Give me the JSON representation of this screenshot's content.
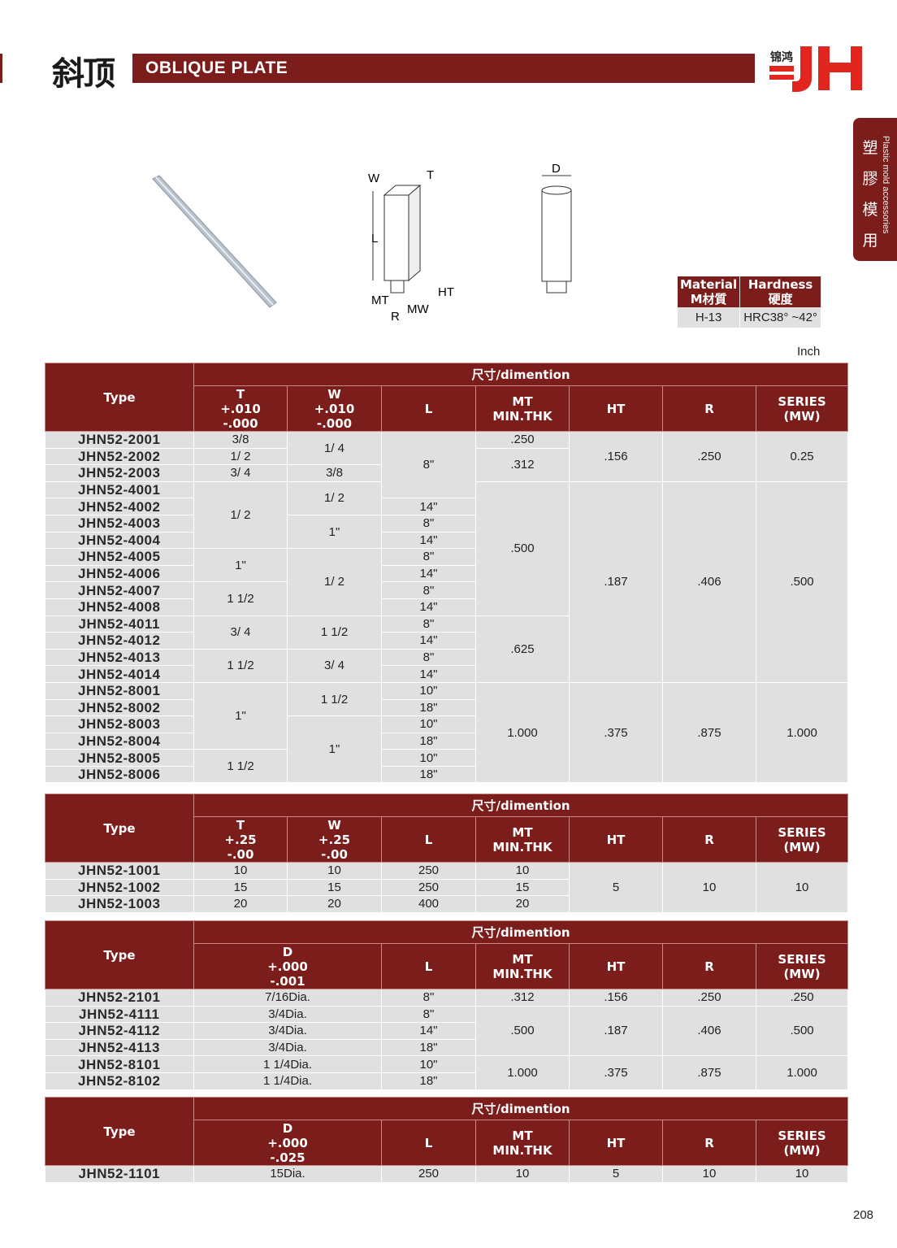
{
  "header": {
    "title_cn": "斜顶",
    "title_en": "OBLIQUE PLATE",
    "logo_cn": "锦鸿",
    "logo_text": "JH"
  },
  "side_tab": {
    "cn": "塑膠模用",
    "en": "Plastic mold accessories"
  },
  "diagram_labels": {
    "W": "W",
    "T": "T",
    "L": "L",
    "MT": "MT",
    "HT": "HT",
    "R": "R",
    "MW": "MW",
    "D": "D"
  },
  "material": {
    "headers": [
      "Material\nM材質",
      "Hardness\n硬度"
    ],
    "values": [
      "H-13",
      "HRC38° ~42°"
    ]
  },
  "unit": "Inch",
  "page_number": "208",
  "colors": {
    "brand": "#7a1d1b",
    "logo_red": "#e0261f",
    "cell": "#e0e0e0"
  },
  "tables": [
    {
      "group": "尺寸/dimention",
      "headers": [
        "Type",
        "T\n+.010\n-.000",
        "W\n+.010\n-.000",
        "L",
        "MT\nMIN.THK",
        "HT",
        "R",
        "SERIES\n(MW)"
      ],
      "rows": [
        [
          [
            "JHN52-2001"
          ],
          [
            "3/8"
          ],
          [
            "1/ 4",
            2
          ],
          [
            "8\"",
            4
          ],
          [
            ".250"
          ],
          [
            ".156",
            3
          ],
          [
            ".250",
            3
          ],
          [
            "0.25",
            3
          ]
        ],
        [
          [
            "JHN52-2002"
          ],
          [
            "1/ 2"
          ],
          [
            ".312",
            2
          ]
        ],
        [
          [
            "JHN52-2003"
          ],
          [
            "3/ 4"
          ],
          [
            "3/8"
          ]
        ],
        [
          [
            "JHN52-4001"
          ],
          [
            "1/ 2",
            4
          ],
          [
            "1/ 2",
            2
          ],
          [
            ".500",
            8
          ],
          [
            ".187",
            12
          ],
          [
            ".406",
            12
          ],
          [
            ".500",
            12
          ]
        ],
        [
          [
            "JHN52-4002"
          ],
          [
            "14\""
          ]
        ],
        [
          [
            "JHN52-4003"
          ],
          [
            "1\"",
            2
          ],
          [
            "8\""
          ]
        ],
        [
          [
            "JHN52-4004"
          ],
          [
            "14\""
          ]
        ],
        [
          [
            "JHN52-4005"
          ],
          [
            "1\"",
            2
          ],
          [
            "1/ 2",
            4
          ],
          [
            "8\""
          ]
        ],
        [
          [
            "JHN52-4006"
          ],
          [
            "14\""
          ]
        ],
        [
          [
            "JHN52-4007"
          ],
          [
            "1 1/2",
            2
          ],
          [
            "8\""
          ]
        ],
        [
          [
            "JHN52-4008"
          ],
          [
            "14\""
          ]
        ],
        [
          [
            "JHN52-4011"
          ],
          [
            "3/ 4",
            2
          ],
          [
            "1 1/2",
            2
          ],
          [
            "8\""
          ],
          [
            ".625",
            4
          ]
        ],
        [
          [
            "JHN52-4012"
          ],
          [
            "14\""
          ]
        ],
        [
          [
            "JHN52-4013"
          ],
          [
            "1 1/2",
            2
          ],
          [
            "3/ 4",
            2
          ],
          [
            "8\""
          ]
        ],
        [
          [
            "JHN52-4014"
          ],
          [
            "14\""
          ]
        ],
        [
          [
            "JHN52-8001"
          ],
          [
            "1\"",
            4
          ],
          [
            "1 1/2",
            2
          ],
          [
            "10\""
          ],
          [
            "1.000",
            6
          ],
          [
            ".375",
            6
          ],
          [
            ".875",
            6
          ],
          [
            "1.000",
            6
          ]
        ],
        [
          [
            "JHN52-8002"
          ],
          [
            "18\""
          ]
        ],
        [
          [
            "JHN52-8003"
          ],
          [
            "1\"",
            4
          ],
          [
            "10\""
          ]
        ],
        [
          [
            "JHN52-8004"
          ],
          [
            "18\""
          ]
        ],
        [
          [
            "JHN52-8005"
          ],
          [
            "1 1/2",
            2
          ],
          [
            "10\""
          ]
        ],
        [
          [
            "JHN52-8006"
          ],
          [
            "18\""
          ]
        ]
      ]
    },
    {
      "group": "尺寸/dimention",
      "headers": [
        "Type",
        "T\n+.25\n-.00",
        "W\n+.25\n-.00",
        "L",
        "MT\nMIN.THK",
        "HT",
        "R",
        "SERIES\n(MW)"
      ],
      "rows": [
        [
          [
            "JHN52-1001"
          ],
          [
            "10"
          ],
          [
            "10"
          ],
          [
            "250"
          ],
          [
            "10"
          ],
          [
            "5",
            3
          ],
          [
            "10",
            3
          ],
          [
            "10",
            3
          ]
        ],
        [
          [
            "JHN52-1002"
          ],
          [
            "15"
          ],
          [
            "15"
          ],
          [
            "250"
          ],
          [
            "15"
          ]
        ],
        [
          [
            "JHN52-1003"
          ],
          [
            "20"
          ],
          [
            "20"
          ],
          [
            "400"
          ],
          [
            "20"
          ]
        ]
      ]
    },
    {
      "group": "尺寸/dimention",
      "headers": [
        "Type",
        "D\n+.000\n-.001",
        "L",
        "MT\nMIN.THK",
        "HT",
        "R",
        "SERIES\n(MW)"
      ],
      "rows": [
        [
          [
            "JHN52-2101"
          ],
          [
            "7/16Dia."
          ],
          [
            "8\""
          ],
          [
            ".312"
          ],
          [
            ".156"
          ],
          [
            ".250"
          ],
          [
            ".250"
          ]
        ],
        [
          [
            "JHN52-4111"
          ],
          [
            "3/4Dia."
          ],
          [
            "8\""
          ],
          [
            ".500",
            3
          ],
          [
            ".187",
            3
          ],
          [
            ".406",
            3
          ],
          [
            ".500",
            3
          ]
        ],
        [
          [
            "JHN52-4112"
          ],
          [
            "3/4Dia."
          ],
          [
            "14\""
          ]
        ],
        [
          [
            "JHN52-4113"
          ],
          [
            "3/4Dia."
          ],
          [
            "18\""
          ]
        ],
        [
          [
            "JHN52-8101"
          ],
          [
            "1 1/4Dia."
          ],
          [
            "10\""
          ],
          [
            "1.000",
            2
          ],
          [
            ".375",
            2
          ],
          [
            ".875",
            2
          ],
          [
            "1.000",
            2
          ]
        ],
        [
          [
            "JHN52-8102"
          ],
          [
            "1 1/4Dia."
          ],
          [
            "18\""
          ]
        ]
      ]
    },
    {
      "group": "尺寸/dimention",
      "headers": [
        "Type",
        "D\n+.000\n-.025",
        "L",
        "MT\nMIN.THK",
        "HT",
        "R",
        "SERIES\n(MW)"
      ],
      "rows": [
        [
          [
            "JHN52-1101"
          ],
          [
            "15Dia."
          ],
          [
            "250"
          ],
          [
            "10"
          ],
          [
            "5"
          ],
          [
            "10"
          ],
          [
            "10"
          ]
        ]
      ]
    }
  ]
}
